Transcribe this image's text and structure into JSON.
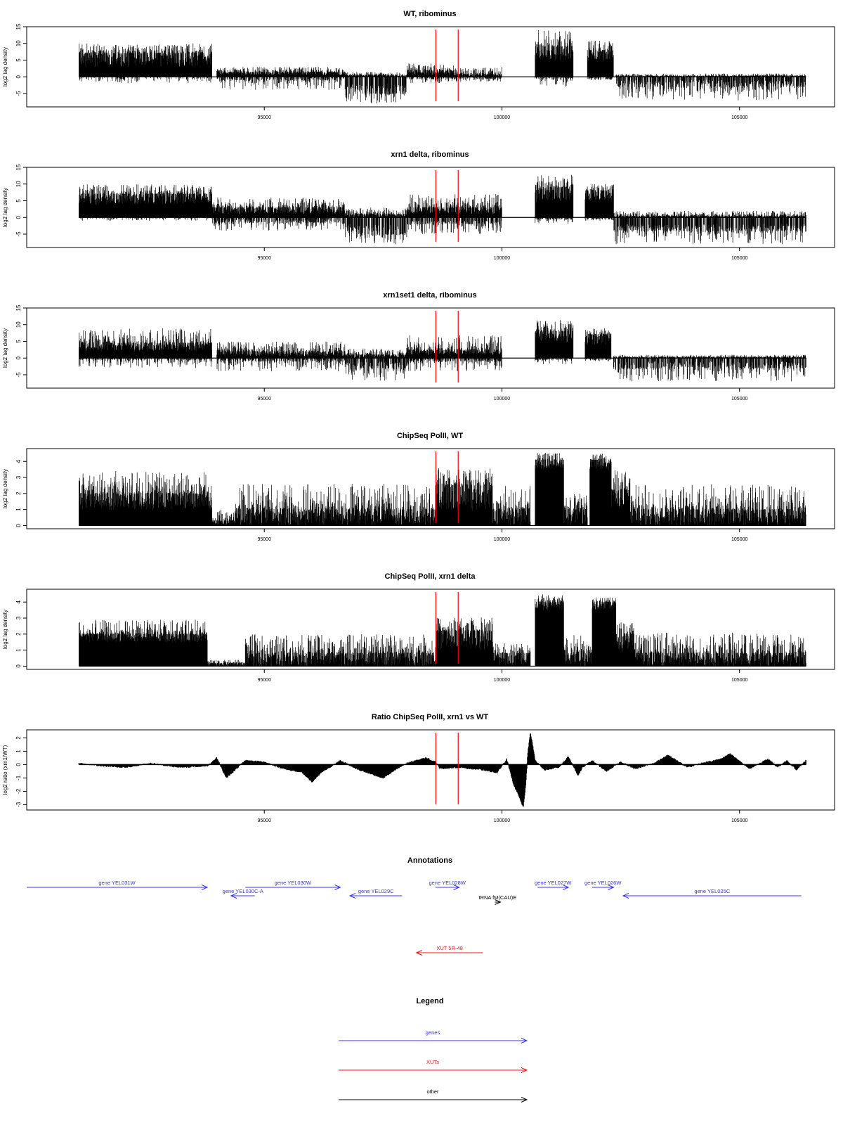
{
  "colors": {
    "gene": "#3333ff",
    "xut": "#ee1111",
    "other": "#000000",
    "marker": "#ff0000",
    "signal": "#000000",
    "box": "#000000"
  },
  "chart_data": [
    {
      "type": "bar",
      "title": "WT, ribominus",
      "ylabel": "log2 tag density",
      "ylim": [
        -9,
        15
      ],
      "yticks": [
        -5,
        0,
        5,
        10,
        15
      ],
      "xlim": [
        90000,
        107000
      ],
      "xticks": [
        95000,
        100000,
        105000
      ],
      "marker_lines_x": [
        98610,
        99080
      ],
      "segments": [
        {
          "x": [
            91100,
            93900
          ],
          "pos": [
            3,
            7,
            10
          ],
          "neg": [
            0,
            0,
            2
          ]
        },
        {
          "x": [
            94000,
            96700
          ],
          "pos": [
            0.5,
            1.5,
            3
          ],
          "neg": [
            0,
            1,
            4
          ]
        },
        {
          "x": [
            96700,
            98000
          ],
          "pos": [
            0,
            0.5,
            1.5
          ],
          "neg": [
            2,
            5,
            8
          ]
        },
        {
          "x": [
            98000,
            99000
          ],
          "pos": [
            0.5,
            2,
            4
          ],
          "neg": [
            0,
            0.5,
            2
          ]
        },
        {
          "x": [
            99000,
            100000
          ],
          "pos": [
            0,
            0.8,
            3
          ],
          "neg": [
            0,
            0.5,
            1.5
          ]
        },
        {
          "x": [
            100700,
            101500
          ],
          "pos": [
            5,
            9,
            14
          ],
          "neg": [
            0,
            0.5,
            3
          ]
        },
        {
          "x": [
            101800,
            102350
          ],
          "pos": [
            5,
            8,
            11
          ],
          "neg": [
            0,
            0.5,
            1
          ]
        },
        {
          "x": [
            102400,
            106400
          ],
          "pos": [
            0,
            0.3,
            1
          ],
          "neg": [
            1,
            3,
            7
          ]
        }
      ]
    },
    {
      "type": "bar",
      "title": "xrn1 delta, ribominus",
      "ylabel": "log2 tag density",
      "ylim": [
        -9,
        15
      ],
      "yticks": [
        -5,
        0,
        5,
        10,
        15
      ],
      "xlim": [
        90000,
        107000
      ],
      "xticks": [
        95000,
        100000,
        105000
      ],
      "marker_lines_x": [
        98610,
        99080
      ],
      "segments": [
        {
          "x": [
            91100,
            93900
          ],
          "pos": [
            4,
            7,
            10
          ],
          "neg": [
            0,
            0,
            1
          ]
        },
        {
          "x": [
            93900,
            96700
          ],
          "pos": [
            1,
            3,
            6
          ],
          "neg": [
            0,
            1.5,
            4
          ]
        },
        {
          "x": [
            96700,
            98000
          ],
          "pos": [
            0,
            1,
            3
          ],
          "neg": [
            2,
            5,
            8
          ]
        },
        {
          "x": [
            98000,
            100000
          ],
          "pos": [
            1,
            3,
            7
          ],
          "neg": [
            1,
            2,
            5
          ]
        },
        {
          "x": [
            100700,
            101500
          ],
          "pos": [
            5,
            9,
            13
          ],
          "neg": [
            0,
            0.5,
            2
          ]
        },
        {
          "x": [
            101750,
            102350
          ],
          "pos": [
            5,
            8,
            10
          ],
          "neg": [
            0,
            0.5,
            1
          ]
        },
        {
          "x": [
            102350,
            106400
          ],
          "pos": [
            0,
            0.5,
            2
          ],
          "neg": [
            2,
            4,
            8
          ]
        }
      ]
    },
    {
      "type": "bar",
      "title": "xrn1set1 delta, ribominus",
      "ylabel": "log2 tag density",
      "ylim": [
        -9,
        15
      ],
      "yticks": [
        -5,
        0,
        5,
        10,
        15
      ],
      "xlim": [
        90000,
        107000
      ],
      "xticks": [
        95000,
        100000,
        105000
      ],
      "marker_lines_x": [
        98610,
        99080
      ],
      "segments": [
        {
          "x": [
            91100,
            93900
          ],
          "pos": [
            2,
            4.5,
            9
          ],
          "neg": [
            0,
            0.5,
            3
          ]
        },
        {
          "x": [
            94000,
            96700
          ],
          "pos": [
            0.5,
            2,
            5
          ],
          "neg": [
            0,
            1,
            4
          ]
        },
        {
          "x": [
            96700,
            98000
          ],
          "pos": [
            0,
            1,
            3
          ],
          "neg": [
            1,
            3,
            7
          ]
        },
        {
          "x": [
            98000,
            100000
          ],
          "pos": [
            1,
            2.5,
            7
          ],
          "neg": [
            0,
            1,
            4
          ]
        },
        {
          "x": [
            100700,
            101500
          ],
          "pos": [
            5,
            8,
            12
          ],
          "neg": [
            0,
            0.5,
            2
          ]
        },
        {
          "x": [
            101750,
            102300
          ],
          "pos": [
            4,
            7,
            9
          ],
          "neg": [
            0,
            0.5,
            1
          ]
        },
        {
          "x": [
            102350,
            106400
          ],
          "pos": [
            0,
            0.3,
            1
          ],
          "neg": [
            1,
            3,
            7
          ]
        }
      ]
    },
    {
      "type": "bar",
      "title": "ChipSeq PolII, WT",
      "ylabel": "log2 tag density",
      "ylim": [
        -0.2,
        4.8
      ],
      "yticks": [
        0,
        1,
        2,
        3,
        4
      ],
      "xlim": [
        90000,
        107000
      ],
      "xticks": [
        95000,
        100000,
        105000
      ],
      "marker_lines_x": [
        98610,
        99080
      ],
      "segments": [
        {
          "x": [
            91100,
            93900
          ],
          "pos": [
            1,
            2,
            3.4
          ],
          "neg": [
            0,
            0,
            0
          ]
        },
        {
          "x": [
            93900,
            94400
          ],
          "pos": [
            0,
            0.3,
            1
          ],
          "neg": [
            0,
            0,
            0
          ]
        },
        {
          "x": [
            94400,
            98600
          ],
          "pos": [
            0,
            1,
            2.6
          ],
          "neg": [
            0,
            0,
            0
          ]
        },
        {
          "x": [
            98600,
            99800
          ],
          "pos": [
            1,
            2.5,
            3.6
          ],
          "neg": [
            0,
            0,
            0
          ]
        },
        {
          "x": [
            99800,
            100600
          ],
          "pos": [
            0,
            1,
            2.6
          ],
          "neg": [
            0,
            0,
            0
          ]
        },
        {
          "x": [
            100700,
            101300
          ],
          "pos": [
            3.5,
            4.1,
            4.6
          ],
          "neg": [
            0,
            0,
            0
          ]
        },
        {
          "x": [
            101300,
            101800
          ],
          "pos": [
            0,
            1,
            2
          ],
          "neg": [
            0,
            0,
            0
          ]
        },
        {
          "x": [
            101850,
            102300
          ],
          "pos": [
            3.5,
            4.1,
            4.5
          ],
          "neg": [
            0,
            0,
            0
          ]
        },
        {
          "x": [
            102300,
            102700
          ],
          "pos": [
            1,
            2.2,
            3.5
          ],
          "neg": [
            0,
            0,
            0
          ]
        },
        {
          "x": [
            102700,
            106400
          ],
          "pos": [
            0,
            1,
            2.6
          ],
          "neg": [
            0,
            0,
            0
          ]
        }
      ]
    },
    {
      "type": "bar",
      "title": "ChipSeq PolII, xrn1 delta",
      "ylabel": "log2 tag density",
      "ylim": [
        -0.2,
        4.8
      ],
      "yticks": [
        0,
        1,
        2,
        3,
        4
      ],
      "xlim": [
        90000,
        107000
      ],
      "xticks": [
        95000,
        100000,
        105000
      ],
      "marker_lines_x": [
        98610,
        99080
      ],
      "segments": [
        {
          "x": [
            91100,
            93800
          ],
          "pos": [
            1.5,
            2,
            2.9
          ],
          "neg": [
            0,
            0,
            0
          ]
        },
        {
          "x": [
            93800,
            94600
          ],
          "pos": [
            0,
            0.2,
            0.4
          ],
          "neg": [
            0,
            0,
            0
          ]
        },
        {
          "x": [
            94600,
            98600
          ],
          "pos": [
            0,
            0.8,
            2
          ],
          "neg": [
            0,
            0,
            0
          ]
        },
        {
          "x": [
            98600,
            99800
          ],
          "pos": [
            1,
            2.2,
            3.1
          ],
          "neg": [
            0,
            0,
            0
          ]
        },
        {
          "x": [
            99800,
            100600
          ],
          "pos": [
            0,
            0.8,
            1.6
          ],
          "neg": [
            0,
            0,
            0
          ]
        },
        {
          "x": [
            100700,
            101300
          ],
          "pos": [
            3.5,
            4,
            4.5
          ],
          "neg": [
            0,
            0,
            0
          ]
        },
        {
          "x": [
            101300,
            101900
          ],
          "pos": [
            0,
            1,
            2
          ],
          "neg": [
            0,
            0,
            0
          ]
        },
        {
          "x": [
            101900,
            102400
          ],
          "pos": [
            3.5,
            4,
            4.3
          ],
          "neg": [
            0,
            0,
            0
          ]
        },
        {
          "x": [
            102400,
            102800
          ],
          "pos": [
            1,
            2,
            3
          ],
          "neg": [
            0,
            0,
            0
          ]
        },
        {
          "x": [
            102800,
            106400
          ],
          "pos": [
            0,
            0.8,
            2.1
          ],
          "neg": [
            0,
            0,
            0
          ]
        }
      ]
    },
    {
      "type": "area",
      "title": "Ratio ChipSeq PolII, xrn1 vs WT",
      "ylabel": "log2 ratio (xrn1/WT)",
      "ylim": [
        -3.4,
        2.6
      ],
      "yticks": [
        -3,
        -2,
        -1,
        0,
        1,
        2
      ],
      "xlim": [
        90000,
        107000
      ],
      "xticks": [
        95000,
        100000,
        105000
      ],
      "marker_lines_x": [
        98610,
        99080
      ],
      "ratio": {
        "x": [
          91100,
          91600,
          92100,
          92600,
          93200,
          93800,
          94000,
          94200,
          94600,
          95000,
          95400,
          95800,
          96000,
          96200,
          96600,
          97000,
          97500,
          97800,
          98000,
          98400,
          98600,
          98700,
          99100,
          99600,
          99900,
          100100,
          100250,
          100350,
          100450,
          100500,
          100550,
          100600,
          100700,
          100900,
          101200,
          101400,
          101600,
          101700,
          101900,
          102200,
          102500,
          102800,
          103200,
          103500,
          103900,
          104200,
          104600,
          104800,
          105200,
          105600,
          105800,
          106000,
          106200,
          106400
        ],
        "y": [
          0.1,
          -0.1,
          -0.2,
          0.1,
          -0.2,
          -0.1,
          0.5,
          -1,
          0.3,
          0.2,
          -0.3,
          -0.6,
          -1.3,
          -0.6,
          0.3,
          -0.4,
          -1,
          -0.3,
          0.1,
          0.5,
          0.2,
          -0.3,
          -0.2,
          -0.4,
          -0.6,
          0.4,
          -1.5,
          -2.3,
          -3.2,
          -1.5,
          1,
          2.4,
          0.3,
          -0.4,
          -0.2,
          0.6,
          -0.8,
          -0.2,
          0.3,
          -0.5,
          0.2,
          -0.3,
          0.1,
          0.7,
          -0.2,
          0.1,
          0.4,
          0.8,
          -0.3,
          0.4,
          -0.2,
          0.3,
          -0.4,
          0.3
        ]
      }
    }
  ],
  "annotations": {
    "title": "Annotations",
    "xlim": [
      90000,
      107000
    ],
    "features": [
      {
        "label": "gene YEL031W",
        "start": 90000,
        "end": 93800,
        "row": 0,
        "strand": "+",
        "type": "gene"
      },
      {
        "label": "gene YEL030C-A",
        "start": 94300,
        "end": 94800,
        "row": 1,
        "strand": "-",
        "type": "gene"
      },
      {
        "label": "gene YEL030W",
        "start": 94600,
        "end": 96600,
        "row": 0,
        "strand": "+",
        "type": "gene"
      },
      {
        "label": "gene YEL029C",
        "start": 96800,
        "end": 97900,
        "row": 1,
        "strand": "-",
        "type": "gene"
      },
      {
        "label": "gene YEL028W",
        "start": 98600,
        "end": 99100,
        "row": 0,
        "strand": "+",
        "type": "gene"
      },
      {
        "label": "tRNA fM(CAU)E",
        "start": 99850,
        "end": 99970,
        "row": 2,
        "strand": "+",
        "type": "other"
      },
      {
        "label": "gene YEL027W",
        "start": 100750,
        "end": 101400,
        "row": 0,
        "strand": "+",
        "type": "gene"
      },
      {
        "label": "gene YEL026W",
        "start": 101900,
        "end": 102350,
        "row": 0,
        "strand": "+",
        "type": "gene"
      },
      {
        "label": "gene YEL025C",
        "start": 102550,
        "end": 106300,
        "row": 1,
        "strand": "-",
        "type": "gene"
      },
      {
        "label": "XUT 5R-48",
        "start": 98200,
        "end": 99600,
        "row": 3,
        "strand": "-",
        "type": "xut"
      }
    ]
  },
  "legend": {
    "title": "Legend",
    "items": [
      {
        "label": "genes",
        "type": "gene"
      },
      {
        "label": "XUTs",
        "type": "xut"
      },
      {
        "label": "other",
        "type": "other"
      }
    ]
  }
}
